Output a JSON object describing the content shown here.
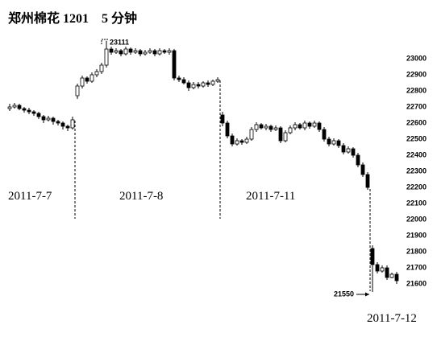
{
  "chart_data": {
    "type": "candlestick",
    "title": "郑州棉花 1201　5 分钟",
    "sessions": [
      "2011-7-7",
      "2011-7-8",
      "2011-7-11",
      "2011-7-12"
    ],
    "annotations": [
      "23111",
      "21550"
    ],
    "ylim": [
      21400,
      23150
    ],
    "yticks": [
      21600,
      21700,
      21800,
      21900,
      22000,
      22100,
      22200,
      22300,
      22400,
      22500,
      22600,
      22700,
      22800,
      22900,
      23000
    ],
    "color": "#000000",
    "open": [
      22690,
      22700,
      22710,
      22690,
      22680,
      22670,
      22660,
      22640,
      22620,
      22630,
      22610,
      22600,
      22580,
      22570,
      22770,
      22830,
      22880,
      22860,
      22900,
      22920,
      22960,
      23060,
      23040,
      23050,
      23030,
      23060,
      23040,
      23050,
      23030,
      23040,
      23050,
      23030,
      23050,
      23040,
      23050,
      22880,
      22870,
      22850,
      22820,
      22840,
      22830,
      22850,
      22840,
      22860,
      22650,
      22600,
      22520,
      22470,
      22490,
      22480,
      22500,
      22560,
      22590,
      22570,
      22580,
      22560,
      22570,
      22490,
      22540,
      22570,
      22590,
      22570,
      22600,
      22580,
      22600,
      22560,
      22500,
      22470,
      22490,
      22460,
      22420,
      22440,
      22400,
      22340,
      22280,
      21820,
      21720,
      21680,
      21700,
      21640,
      21660
    ],
    "high": [
      22720,
      22725,
      22720,
      22700,
      22695,
      22680,
      22670,
      22650,
      22645,
      22640,
      22620,
      22610,
      22590,
      22640,
      22845,
      22895,
      22890,
      22915,
      22935,
      22975,
      23111,
      23075,
      23065,
      23060,
      23075,
      23070,
      23065,
      23060,
      23055,
      23065,
      23060,
      23065,
      23060,
      23065,
      23060,
      22895,
      22885,
      22865,
      22855,
      22855,
      22860,
      22865,
      22870,
      22885,
      22670,
      22615,
      22535,
      22505,
      22500,
      22515,
      22575,
      22605,
      22600,
      22595,
      22590,
      22585,
      22580,
      22555,
      22585,
      22605,
      22600,
      22615,
      22610,
      22615,
      22610,
      22575,
      22515,
      22505,
      22500,
      22475,
      22455,
      22450,
      22415,
      22355,
      22295,
      21840,
      21735,
      21715,
      21715,
      21670,
      21675
    ],
    "low": [
      22675,
      22690,
      22680,
      22665,
      22655,
      22645,
      22625,
      22600,
      22610,
      22590,
      22585,
      22560,
      22550,
      22560,
      22750,
      22815,
      22845,
      22850,
      22885,
      22905,
      22945,
      23025,
      23030,
      23015,
      23020,
      23025,
      23030,
      23015,
      23020,
      23030,
      23015,
      23020,
      23030,
      23025,
      22865,
      22855,
      22840,
      22800,
      22810,
      22815,
      22820,
      22825,
      22830,
      22850,
      22580,
      22505,
      22455,
      22460,
      22465,
      22470,
      22490,
      22545,
      22560,
      22555,
      22545,
      22550,
      22475,
      22480,
      22530,
      22555,
      22560,
      22555,
      22565,
      22570,
      22545,
      22485,
      22455,
      22460,
      22445,
      22405,
      22410,
      22385,
      22325,
      22265,
      22185,
      21550,
      21665,
      21670,
      21625,
      21635,
      21600
    ],
    "close": [
      22700,
      22710,
      22690,
      22680,
      22670,
      22660,
      22640,
      22620,
      22630,
      22610,
      22600,
      22580,
      22570,
      22620,
      22830,
      22880,
      22860,
      22900,
      22920,
      22960,
      23060,
      23040,
      23050,
      23030,
      23060,
      23040,
      23050,
      23030,
      23040,
      23050,
      23030,
      23050,
      23040,
      23050,
      22880,
      22870,
      22850,
      22820,
      22840,
      22830,
      22850,
      22840,
      22860,
      22870,
      22600,
      22520,
      22470,
      22490,
      22480,
      22500,
      22560,
      22590,
      22570,
      22580,
      22560,
      22570,
      22490,
      22540,
      22570,
      22590,
      22570,
      22600,
      22580,
      22600,
      22560,
      22500,
      22470,
      22490,
      22460,
      22420,
      22440,
      22400,
      22340,
      22280,
      22200,
      21720,
      21680,
      21700,
      21640,
      21660,
      21620
    ]
  }
}
